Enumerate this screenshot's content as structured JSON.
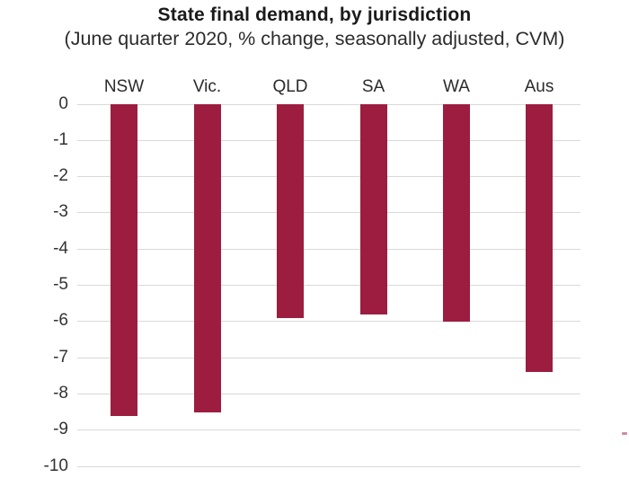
{
  "chart_data": {
    "type": "bar",
    "title": "State final demand, by jurisdiction",
    "subtitle": "(June quarter 2020, % change, seasonally adjusted, CVM)",
    "categories": [
      "NSW",
      "Vic.",
      "QLD",
      "SA",
      "WA",
      "Aus"
    ],
    "values": [
      -8.6,
      -8.5,
      -5.9,
      -5.8,
      -6.0,
      -7.4
    ],
    "xlabel": "",
    "ylabel": "",
    "ylim": [
      -10,
      0
    ],
    "ytick_step": 1,
    "ytick_labels": [
      "0",
      "-1",
      "-2",
      "-3",
      "-4",
      "-5",
      "-6",
      "-7",
      "-8",
      "-9",
      "-10"
    ],
    "grid": true,
    "legend_position": "none",
    "category_label_position": "top",
    "bar_color": "#9C1D40",
    "gridline_color": "#D9D9D9",
    "stray_mark_color": "#9C1D40"
  }
}
